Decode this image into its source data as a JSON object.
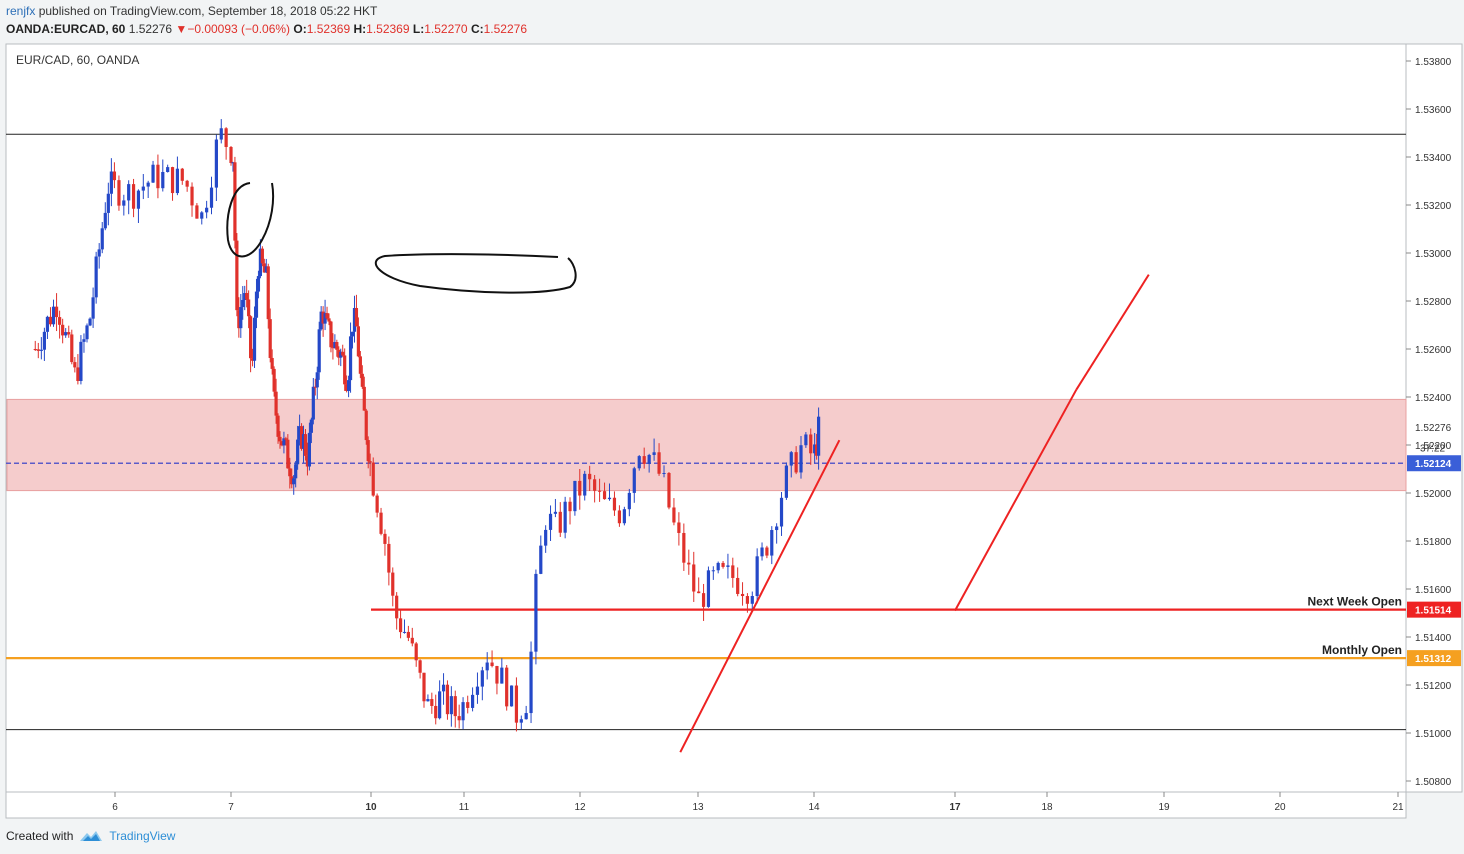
{
  "header": {
    "author": "renjfx",
    "published": "published on TradingView.com, September 18, 2018 05:22 HKT",
    "symbol": "OANDA:EURCAD, 60",
    "last": "1.52276",
    "change": "−0.00093 (−0.06%)",
    "o_label": "O:",
    "o": "1.52369",
    "h_label": "H:",
    "h": "1.52369",
    "l_label": "L:",
    "l": "1.52270",
    "c_label": "C:",
    "c": "1.52276"
  },
  "footer": {
    "created_with": "Created with",
    "brand": "TradingView"
  },
  "colors": {
    "up": "#2448c8",
    "down": "#e0312b",
    "zone": "#f4c7c7",
    "red_line": "#ee2222",
    "orange_line": "#f5a020",
    "dashed": "#5b5bc8"
  },
  "chart_data": {
    "type": "candlestick",
    "title": "EUR/CAD, 60, OANDA",
    "ylim": [
      1.507,
      1.539
    ],
    "y_ticks": [
      "1.53800",
      "1.53600",
      "1.53400",
      "1.53200",
      "1.53000",
      "1.52800",
      "1.52600",
      "1.52400",
      "1.52200",
      "1.52000",
      "1.51800",
      "1.51600",
      "1.51400",
      "1.51200",
      "1.51000",
      "1.50800"
    ],
    "x_ticks": [
      {
        "label": "6",
        "day": 6,
        "bold": false
      },
      {
        "label": "7",
        "day": 7,
        "bold": false
      },
      {
        "label": "10",
        "day": 10,
        "bold": true
      },
      {
        "label": "11",
        "day": 11,
        "bold": false
      },
      {
        "label": "12",
        "day": 12,
        "bold": false
      },
      {
        "label": "13",
        "day": 13,
        "bold": false
      },
      {
        "label": "14",
        "day": 14,
        "bold": false
      },
      {
        "label": "17",
        "day": 17,
        "bold": true
      },
      {
        "label": "18",
        "day": 18,
        "bold": false
      },
      {
        "label": "19",
        "day": 19,
        "bold": false
      },
      {
        "label": "20",
        "day": 20,
        "bold": false
      },
      {
        "label": "21",
        "day": 21,
        "bold": false
      }
    ],
    "price_labels": [
      {
        "value": 1.52276,
        "text": "1.52276",
        "style": "plain"
      },
      {
        "value": 1.52124,
        "text": "1.52124",
        "style": "blue"
      },
      {
        "value": 1.51514,
        "text": "1.51514",
        "style": "red"
      },
      {
        "value": 1.51312,
        "text": "1.51312",
        "style": "orange"
      }
    ],
    "countdown": {
      "value": 1.5219,
      "text": "37:22"
    },
    "supply_zone": [
      1.5201,
      1.5239
    ],
    "horizontal_lines": [
      {
        "value": 1.53495,
        "color": "#222222",
        "from_day": 4.9,
        "label": ""
      },
      {
        "value": 1.51014,
        "color": "#222222",
        "from_day": 4.9,
        "label": ""
      },
      {
        "value": 1.52124,
        "color": "#5b5bc8",
        "from_day": 4.9,
        "label": "",
        "dashed": true
      },
      {
        "value": 1.51514,
        "color": "#ee2222",
        "from_day": 10.0,
        "label": "Next Week Open"
      },
      {
        "value": 1.51312,
        "color": "#f5a020",
        "from_day": 4.9,
        "label": "Monthly Open"
      }
    ],
    "trend_lines": [
      {
        "from": [
          12.85,
          1.5092
        ],
        "to": [
          14.54,
          1.5222
        ]
      },
      {
        "from": [
          17.0,
          1.5151
        ],
        "to": [
          18.25,
          1.5243
        ]
      },
      {
        "from": [
          18.25,
          1.5243
        ],
        "to": [
          18.87,
          1.5291
        ]
      }
    ],
    "points": [
      {
        "d": 4.9,
        "v": 1.526
      },
      {
        "d": 5.2,
        "v": 1.528
      },
      {
        "d": 5.45,
        "v": 1.5248
      },
      {
        "d": 5.65,
        "v": 1.5272
      },
      {
        "d": 5.9,
        "v": 1.5328
      },
      {
        "d": 6.15,
        "v": 1.5325
      },
      {
        "d": 6.35,
        "v": 1.5332
      },
      {
        "d": 6.6,
        "v": 1.533
      },
      {
        "d": 6.75,
        "v": 1.5315
      },
      {
        "d": 6.9,
        "v": 1.535
      },
      {
        "d": 7.05,
        "v": 1.534
      },
      {
        "d": 7.12,
        "v": 1.527
      },
      {
        "d": 7.3,
        "v": 1.5285
      },
      {
        "d": 7.45,
        "v": 1.525
      },
      {
        "d": 7.58,
        "v": 1.5297
      },
      {
        "d": 7.75,
        "v": 1.529
      },
      {
        "d": 7.9,
        "v": 1.524
      },
      {
        "d": 8.05,
        "v": 1.5225
      },
      {
        "d": 8.2,
        "v": 1.5215
      },
      {
        "d": 8.35,
        "v": 1.5208
      },
      {
        "d": 8.5,
        "v": 1.5225
      },
      {
        "d": 8.65,
        "v": 1.5215
      },
      {
        "d": 8.8,
        "v": 1.5245
      },
      {
        "d": 8.95,
        "v": 1.5278
      },
      {
        "d": 9.05,
        "v": 1.5268
      },
      {
        "d": 9.2,
        "v": 1.5262
      },
      {
        "d": 9.35,
        "v": 1.5258
      },
      {
        "d": 9.5,
        "v": 1.5248
      },
      {
        "d": 9.6,
        "v": 1.5272
      },
      {
        "d": 9.7,
        "v": 1.5268
      },
      {
        "d": 9.8,
        "v": 1.524
      },
      {
        "d": 9.95,
        "v": 1.5218
      },
      {
        "d": 10.05,
        "v": 1.52
      },
      {
        "d": 10.15,
        "v": 1.518
      },
      {
        "d": 10.25,
        "v": 1.515
      },
      {
        "d": 10.4,
        "v": 1.514
      },
      {
        "d": 10.5,
        "v": 1.5125
      },
      {
        "d": 10.62,
        "v": 1.511
      },
      {
        "d": 10.75,
        "v": 1.5115
      },
      {
        "d": 10.9,
        "v": 1.5108
      },
      {
        "d": 11.0,
        "v": 1.5112
      },
      {
        "d": 11.1,
        "v": 1.5125
      },
      {
        "d": 11.2,
        "v": 1.5133
      },
      {
        "d": 11.35,
        "v": 1.512
      },
      {
        "d": 11.45,
        "v": 1.5108
      },
      {
        "d": 11.55,
        "v": 1.5115
      },
      {
        "d": 11.62,
        "v": 1.516
      },
      {
        "d": 11.7,
        "v": 1.519
      },
      {
        "d": 11.8,
        "v": 1.5185
      },
      {
        "d": 11.9,
        "v": 1.5195
      },
      {
        "d": 12.05,
        "v": 1.5205
      },
      {
        "d": 12.2,
        "v": 1.5195
      },
      {
        "d": 12.35,
        "v": 1.5192
      },
      {
        "d": 12.5,
        "v": 1.522
      },
      {
        "d": 12.6,
        "v": 1.5215
      },
      {
        "d": 12.7,
        "v": 1.5205
      },
      {
        "d": 12.8,
        "v": 1.5185
      },
      {
        "d": 12.9,
        "v": 1.517
      },
      {
        "d": 13.0,
        "v": 1.5155
      },
      {
        "d": 13.15,
        "v": 1.5165
      },
      {
        "d": 13.3,
        "v": 1.5165
      },
      {
        "d": 13.45,
        "v": 1.516
      },
      {
        "d": 13.6,
        "v": 1.518
      },
      {
        "d": 13.75,
        "v": 1.5205
      },
      {
        "d": 13.9,
        "v": 1.522
      },
      {
        "d": 14.0,
        "v": 1.5215
      },
      {
        "d": 14.1,
        "v": 1.5226
      }
    ]
  }
}
